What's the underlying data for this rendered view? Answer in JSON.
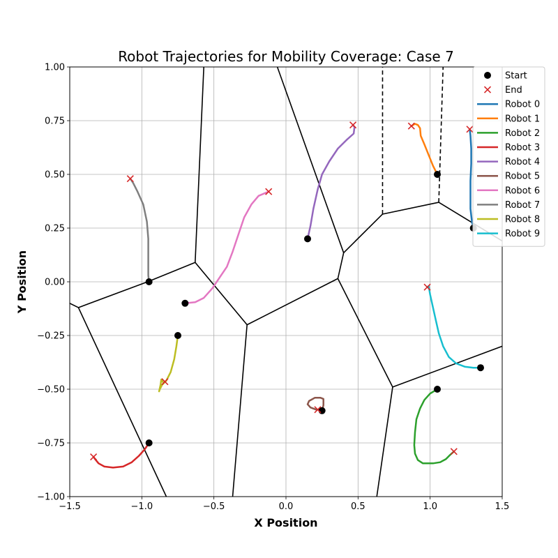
{
  "chart_data": {
    "type": "line",
    "title": "Robot Trajectories for Mobility Coverage: Case 7",
    "xlabel": "X Position",
    "ylabel": "Y Position",
    "xlim": [
      -1.5,
      1.5
    ],
    "ylim": [
      -1.0,
      1.0
    ],
    "x_ticks": [
      "−1.5",
      "−1.0",
      "−0.5",
      "0.0",
      "0.5",
      "1.0",
      "1.5"
    ],
    "y_ticks": [
      "−1.00",
      "−0.75",
      "−0.50",
      "−0.25",
      "0.00",
      "0.25",
      "0.50",
      "0.75",
      "1.00"
    ],
    "x_tick_values": [
      -1.5,
      -1.0,
      -0.5,
      0.0,
      0.5,
      1.0,
      1.5
    ],
    "y_tick_values": [
      -1.0,
      -0.75,
      -0.5,
      -0.25,
      0.0,
      0.25,
      0.5,
      0.75,
      1.0
    ],
    "grid": true,
    "legend_position": "top-right",
    "legend": {
      "start_label": "Start",
      "end_label": "End"
    },
    "colors": {
      "start_marker": "#000000",
      "end_marker": "#d62728",
      "voronoi": "#000000"
    },
    "series": [
      {
        "name": "Robot 0",
        "color": "#1f77b4",
        "points": [
          [
            1.3,
            0.25
          ],
          [
            1.29,
            0.28
          ],
          [
            1.28,
            0.34
          ],
          [
            1.28,
            0.4
          ],
          [
            1.28,
            0.47
          ],
          [
            1.285,
            0.55
          ],
          [
            1.285,
            0.62
          ],
          [
            1.28,
            0.68
          ],
          [
            1.275,
            0.71
          ]
        ]
      },
      {
        "name": "Robot 1",
        "color": "#ff7f0e",
        "points": [
          [
            1.05,
            0.5
          ],
          [
            1.02,
            0.54
          ],
          [
            0.99,
            0.59
          ],
          [
            0.96,
            0.64
          ],
          [
            0.935,
            0.68
          ],
          [
            0.93,
            0.715
          ],
          [
            0.915,
            0.73
          ],
          [
            0.895,
            0.735
          ],
          [
            0.87,
            0.725
          ]
        ]
      },
      {
        "name": "Robot 2",
        "color": "#2ca02c",
        "points": [
          [
            1.05,
            -0.5
          ],
          [
            1.0,
            -0.52
          ],
          [
            0.96,
            -0.55
          ],
          [
            0.93,
            -0.59
          ],
          [
            0.905,
            -0.64
          ],
          [
            0.895,
            -0.7
          ],
          [
            0.89,
            -0.76
          ],
          [
            0.895,
            -0.8
          ],
          [
            0.915,
            -0.83
          ],
          [
            0.95,
            -0.845
          ],
          [
            1.02,
            -0.845
          ],
          [
            1.07,
            -0.84
          ],
          [
            1.11,
            -0.825
          ],
          [
            1.14,
            -0.805
          ],
          [
            1.165,
            -0.79
          ]
        ]
      },
      {
        "name": "Robot 3",
        "color": "#d62728",
        "points": [
          [
            -0.95,
            -0.75
          ],
          [
            -0.98,
            -0.78
          ],
          [
            -1.02,
            -0.81
          ],
          [
            -1.07,
            -0.84
          ],
          [
            -1.13,
            -0.86
          ],
          [
            -1.2,
            -0.865
          ],
          [
            -1.26,
            -0.86
          ],
          [
            -1.3,
            -0.845
          ],
          [
            -1.325,
            -0.825
          ],
          [
            -1.335,
            -0.815
          ]
        ]
      },
      {
        "name": "Robot 4",
        "color": "#9467bd",
        "points": [
          [
            0.15,
            0.2
          ],
          [
            0.17,
            0.26
          ],
          [
            0.19,
            0.34
          ],
          [
            0.22,
            0.43
          ],
          [
            0.25,
            0.5
          ],
          [
            0.3,
            0.56
          ],
          [
            0.36,
            0.62
          ],
          [
            0.42,
            0.66
          ],
          [
            0.47,
            0.69
          ],
          [
            0.475,
            0.72
          ],
          [
            0.465,
            0.73
          ]
        ]
      },
      {
        "name": "Robot 5",
        "color": "#8c564b",
        "points": [
          [
            0.25,
            -0.6
          ],
          [
            0.26,
            -0.575
          ],
          [
            0.26,
            -0.545
          ],
          [
            0.24,
            -0.54
          ],
          [
            0.2,
            -0.54
          ],
          [
            0.16,
            -0.555
          ],
          [
            0.15,
            -0.57
          ],
          [
            0.17,
            -0.585
          ],
          [
            0.21,
            -0.595
          ],
          [
            0.22,
            -0.595
          ]
        ]
      },
      {
        "name": "Robot 6",
        "color": "#e377c2",
        "points": [
          [
            -0.7,
            -0.1
          ],
          [
            -0.63,
            -0.095
          ],
          [
            -0.57,
            -0.075
          ],
          [
            -0.51,
            -0.03
          ],
          [
            -0.46,
            0.02
          ],
          [
            -0.41,
            0.07
          ],
          [
            -0.37,
            0.14
          ],
          [
            -0.33,
            0.22
          ],
          [
            -0.29,
            0.3
          ],
          [
            -0.24,
            0.36
          ],
          [
            -0.19,
            0.4
          ],
          [
            -0.12,
            0.42
          ]
        ]
      },
      {
        "name": "Robot 7",
        "color": "#7f7f7f",
        "points": [
          [
            -0.95,
            0.0
          ],
          [
            -0.955,
            0.03
          ],
          [
            -0.955,
            0.1
          ],
          [
            -0.955,
            0.2
          ],
          [
            -0.965,
            0.28
          ],
          [
            -0.99,
            0.36
          ],
          [
            -1.03,
            0.42
          ],
          [
            -1.06,
            0.46
          ],
          [
            -1.08,
            0.48
          ]
        ]
      },
      {
        "name": "Robot 8",
        "color": "#bcbd22",
        "points": [
          [
            -0.75,
            -0.25
          ],
          [
            -0.76,
            -0.3
          ],
          [
            -0.775,
            -0.36
          ],
          [
            -0.8,
            -0.42
          ],
          [
            -0.83,
            -0.46
          ],
          [
            -0.86,
            -0.48
          ],
          [
            -0.875,
            -0.5
          ],
          [
            -0.88,
            -0.51
          ],
          [
            -0.87,
            -0.48
          ],
          [
            -0.865,
            -0.455
          ],
          [
            -0.85,
            -0.47
          ],
          [
            -0.84,
            -0.465
          ]
        ]
      },
      {
        "name": "Robot 9",
        "color": "#17becf",
        "points": [
          [
            1.35,
            -0.4
          ],
          [
            1.3,
            -0.4
          ],
          [
            1.24,
            -0.395
          ],
          [
            1.18,
            -0.38
          ],
          [
            1.13,
            -0.35
          ],
          [
            1.09,
            -0.3
          ],
          [
            1.06,
            -0.24
          ],
          [
            1.04,
            -0.18
          ],
          [
            1.02,
            -0.12
          ],
          [
            1.0,
            -0.06
          ],
          [
            0.99,
            -0.02
          ],
          [
            0.98,
            -0.025
          ]
        ]
      }
    ],
    "voronoi_segments": [
      [
        [
          -0.57,
          1.0
        ],
        [
          -0.63,
          0.09
        ]
      ],
      [
        [
          -0.63,
          0.09
        ],
        [
          -0.96,
          0.0
        ]
      ],
      [
        [
          -0.96,
          0.0
        ],
        [
          -1.44,
          -0.12
        ]
      ],
      [
        [
          -1.44,
          -0.12
        ],
        [
          -1.5,
          -0.1
        ]
      ],
      [
        [
          -1.44,
          -0.12
        ],
        [
          -0.83,
          -1.0
        ]
      ],
      [
        [
          -0.63,
          0.09
        ],
        [
          -0.27,
          -0.2
        ]
      ],
      [
        [
          -0.27,
          -0.2
        ],
        [
          -0.37,
          -1.0
        ]
      ],
      [
        [
          -0.27,
          -0.2
        ],
        [
          0.36,
          0.015
        ]
      ],
      [
        [
          0.36,
          0.015
        ],
        [
          0.4,
          0.135
        ]
      ],
      [
        [
          0.4,
          0.135
        ],
        [
          -0.06,
          1.0
        ]
      ],
      [
        [
          0.4,
          0.135
        ],
        [
          0.67,
          0.315
        ]
      ],
      [
        [
          0.67,
          0.315
        ],
        [
          1.06,
          0.37
        ]
      ],
      [
        [
          1.06,
          0.37
        ],
        [
          1.5,
          0.19
        ]
      ],
      [
        [
          0.36,
          0.015
        ],
        [
          0.74,
          -0.49
        ]
      ],
      [
        [
          0.74,
          -0.49
        ],
        [
          0.63,
          -1.0
        ]
      ],
      [
        [
          0.74,
          -0.49
        ],
        [
          1.5,
          -0.3
        ]
      ]
    ],
    "voronoi_dashed": [
      [
        [
          0.67,
          0.315
        ],
        [
          0.67,
          1.0
        ]
      ],
      [
        [
          1.06,
          0.37
        ],
        [
          1.09,
          1.0
        ]
      ]
    ]
  }
}
